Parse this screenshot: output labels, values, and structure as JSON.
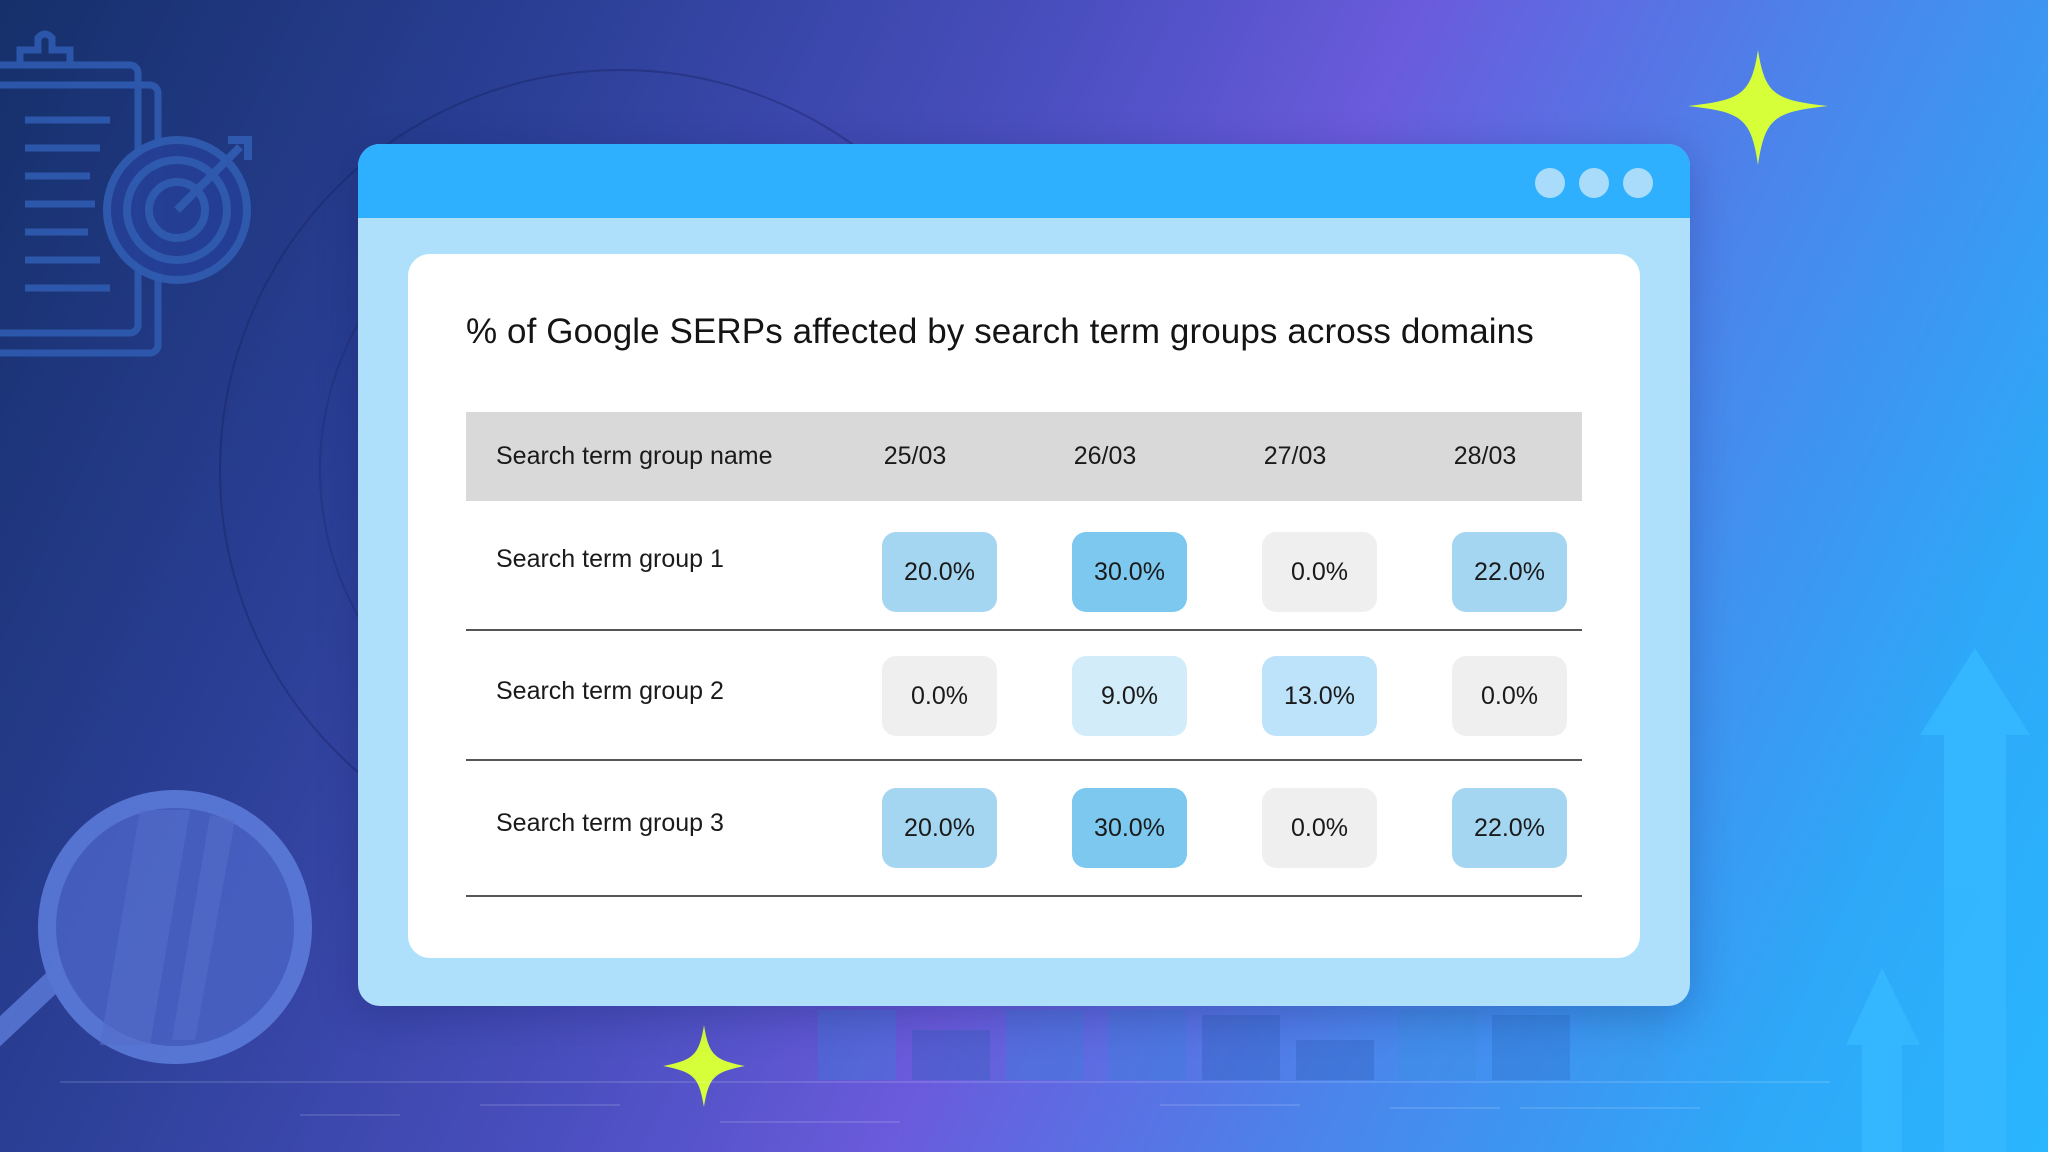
{
  "chart_data": {
    "type": "table",
    "title": "% of Google SERPs affected by search term groups across domains",
    "columns": [
      "Search term group name",
      "25/03",
      "26/03",
      "27/03",
      "28/03"
    ],
    "rows": [
      {
        "name": "Search term group 1",
        "values": [
          "20.0%",
          "30.0%",
          "0.0%",
          "22.0%"
        ]
      },
      {
        "name": "Search term group 2",
        "values": [
          "0.0%",
          "9.0%",
          "13.0%",
          "0.0%"
        ]
      },
      {
        "name": "Search term group 3",
        "values": [
          "20.0%",
          "30.0%",
          "0.0%",
          "22.0%"
        ]
      }
    ]
  },
  "colors": {
    "cell_level_30": "#7cc8ef",
    "cell_level_20": "#a4d6f2",
    "cell_level_13": "#bde3fa",
    "cell_level_9": "#d3ecfa",
    "cell_level_0": "#efefef",
    "header_bg": "#d9d9d9",
    "titlebar": "#2fb0ff",
    "window_frame": "#aee0fc",
    "sparkle": "#d6ff3a"
  },
  "icons": [
    "clipboard-icon",
    "target-icon",
    "magnifier-icon",
    "sparkle-icon",
    "arrow-up-icon",
    "bar-chart-icon"
  ]
}
